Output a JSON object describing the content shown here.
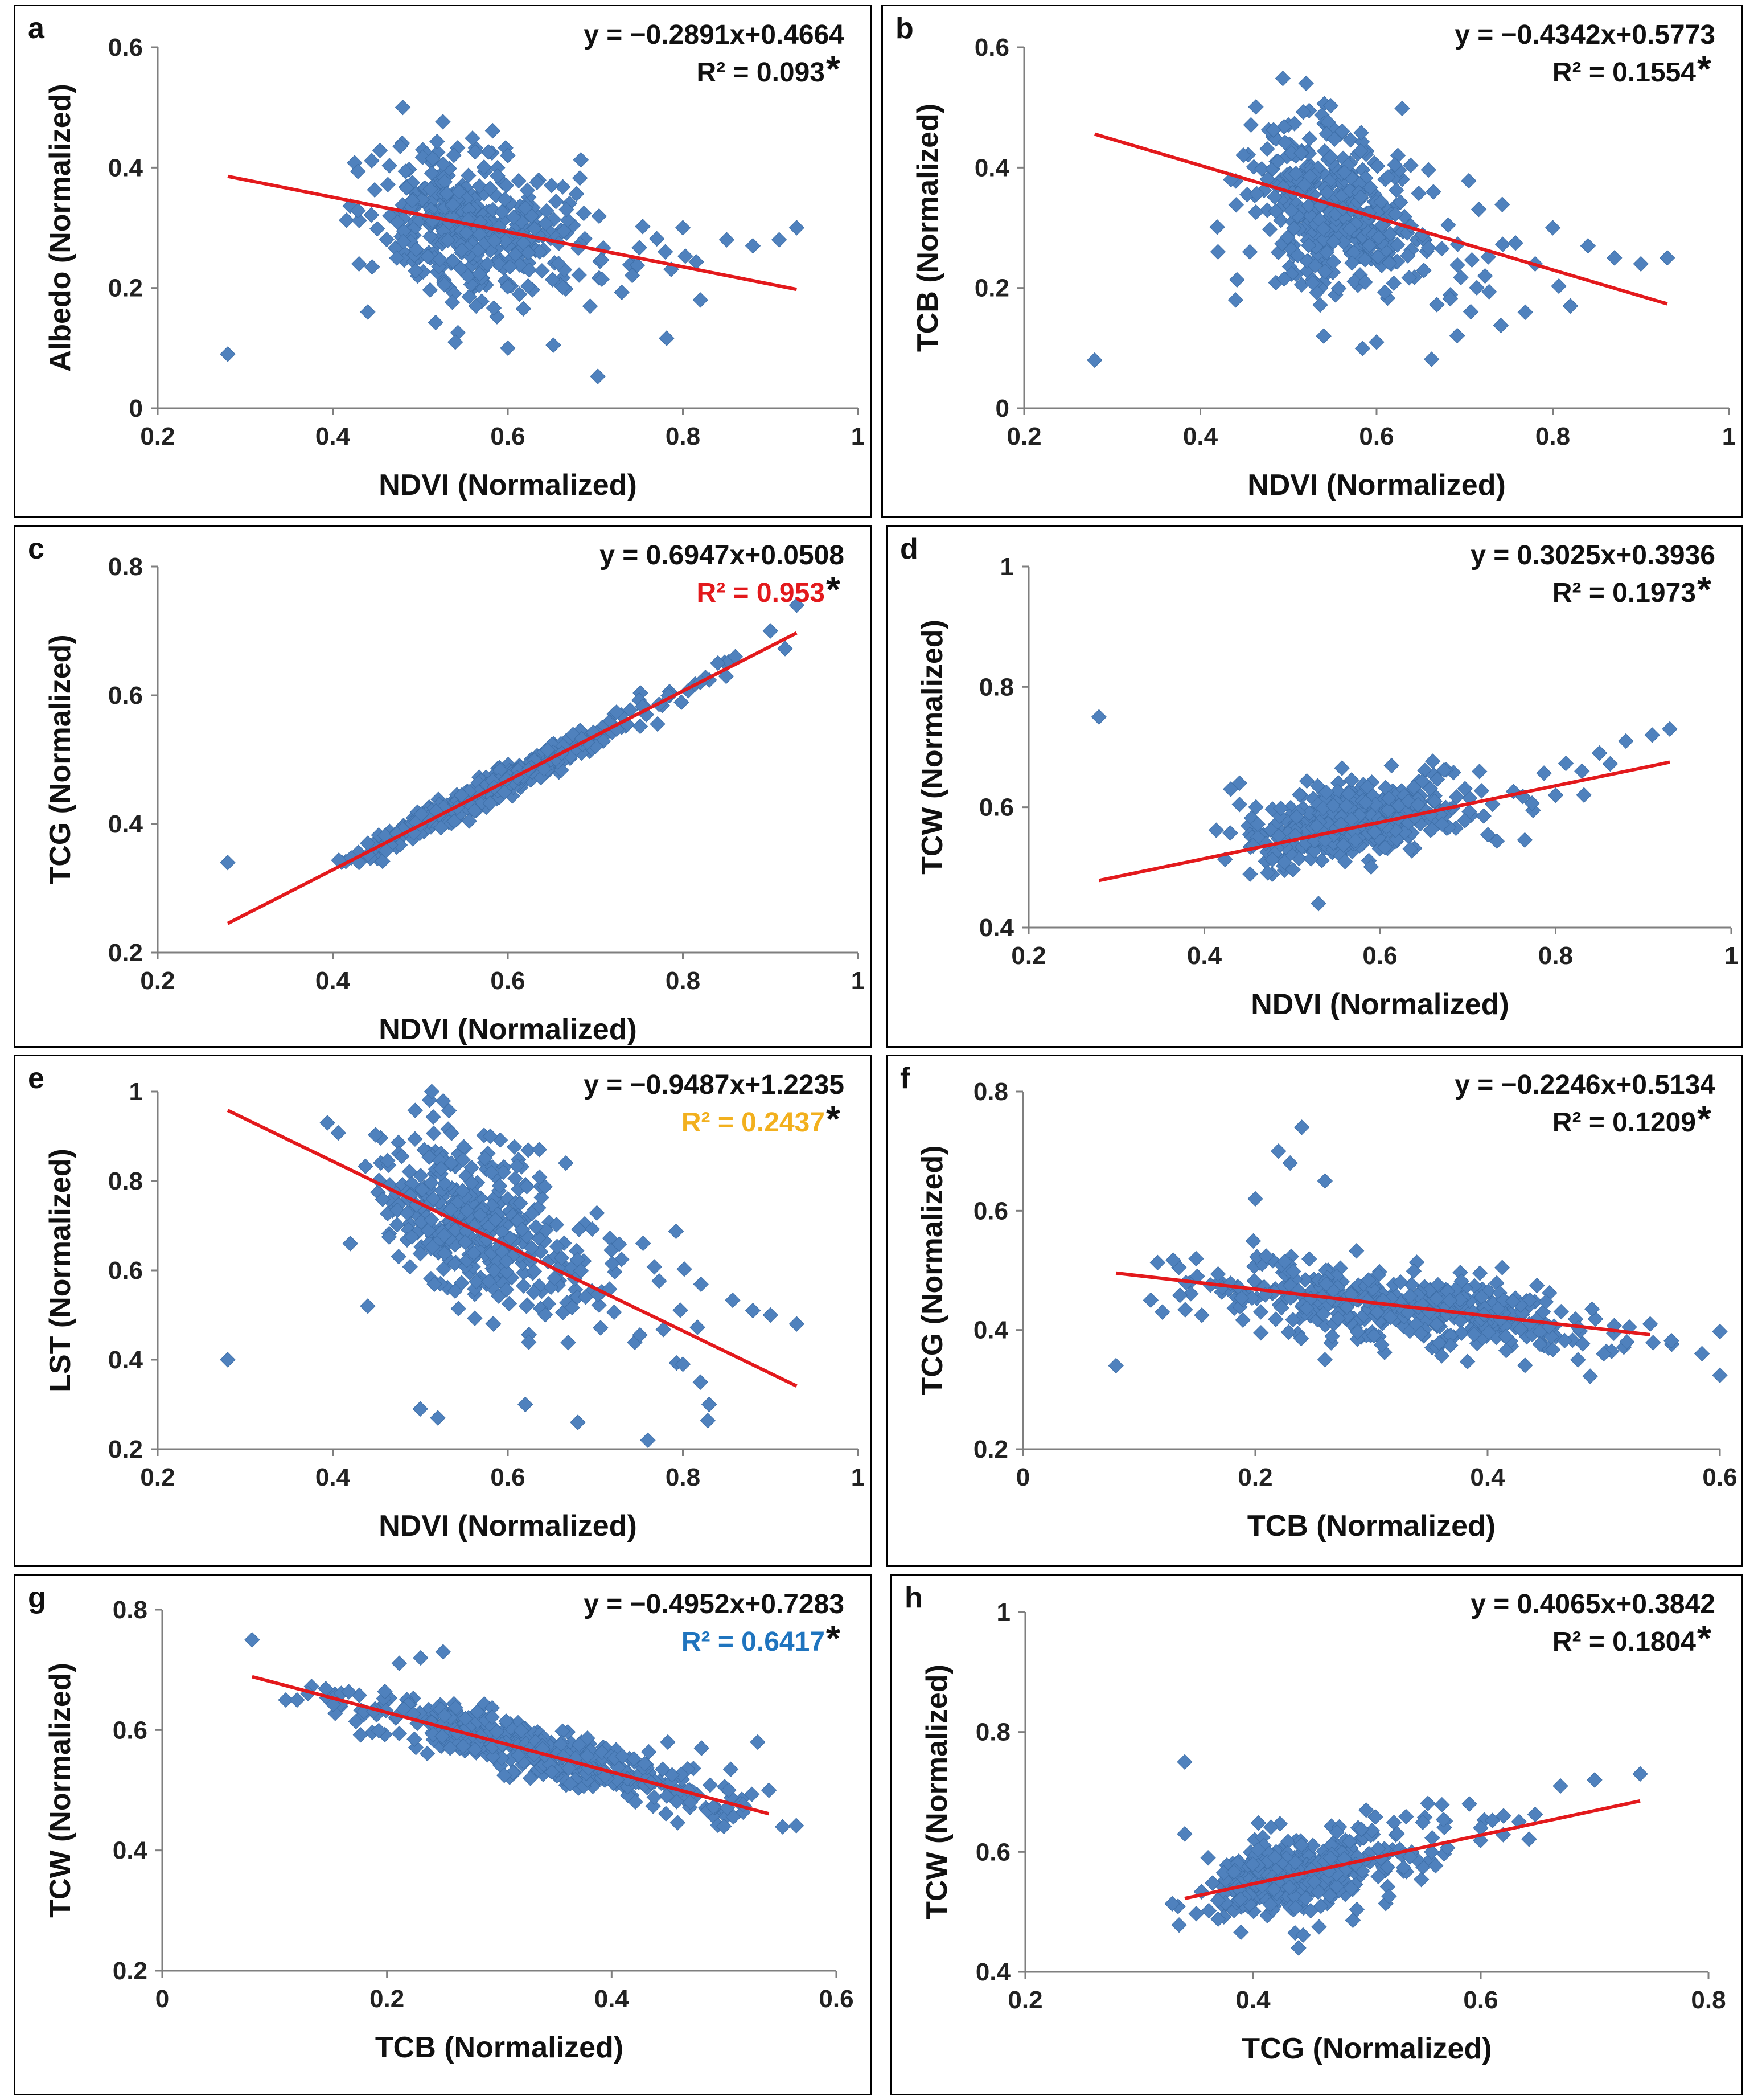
{
  "colors": {
    "points": "#4F81BD",
    "trendline": "#E3191C",
    "axis": "#7F7F7F",
    "text": "#111111"
  },
  "chart_data": [
    {
      "type": "scatter",
      "panel": "a",
      "xlabel": "NDVI (Normalized)",
      "ylabel": "Albedo (Normalized)",
      "xlim": [
        0.2,
        1
      ],
      "ylim": [
        0,
        0.6
      ],
      "xticks": [
        "0.2",
        "0.4",
        "0.6",
        "0.8",
        "1"
      ],
      "yticks": [
        "0",
        "0.2",
        "0.4",
        "0.6"
      ],
      "equation": "y = −0.2891x+0.4664",
      "r2": "R² = 0.093",
      "significance": "*",
      "r2_color": "#111111",
      "slope": -0.2891,
      "intercept": 0.4664,
      "fit_x": [
        0.28,
        0.93
      ],
      "cluster": {
        "x_center": 0.54,
        "x_spread": 0.045,
        "y_center": 0.31,
        "y_spread": 0.06,
        "count": 420,
        "x_skew": 0.09,
        "slope": -0.2891
      },
      "points": [
        [
          0.28,
          0.09
        ],
        [
          0.43,
          0.24
        ],
        [
          0.44,
          0.16
        ],
        [
          0.93,
          0.3
        ],
        [
          0.91,
          0.28
        ],
        [
          0.88,
          0.27
        ],
        [
          0.85,
          0.28
        ],
        [
          0.82,
          0.18
        ],
        [
          0.8,
          0.3
        ],
        [
          0.78,
          0.26
        ],
        [
          0.6,
          0.42
        ],
        [
          0.54,
          0.11
        ],
        [
          0.6,
          0.1
        ],
        [
          0.48,
          0.5
        ]
      ]
    },
    {
      "type": "scatter",
      "panel": "b",
      "xlabel": "NDVI (Normalized)",
      "ylabel": "TCB (Normalized)",
      "xlim": [
        0.2,
        1
      ],
      "ylim": [
        0,
        0.6
      ],
      "xticks": [
        "0.2",
        "0.4",
        "0.6",
        "0.8",
        "1"
      ],
      "yticks": [
        "0",
        "0.2",
        "0.4",
        "0.6"
      ],
      "equation": "y = −0.4342x+0.5773",
      "r2": "R² = 0.1554",
      "significance": "*",
      "r2_color": "#111111",
      "slope": -0.4342,
      "intercept": 0.5773,
      "fit_x": [
        0.28,
        0.93
      ],
      "cluster": {
        "x_center": 0.54,
        "x_spread": 0.045,
        "y_center": 0.34,
        "y_spread": 0.07,
        "count": 420,
        "x_skew": 0.09,
        "slope": -0.4342
      },
      "points": [
        [
          0.28,
          0.08
        ],
        [
          0.42,
          0.26
        ],
        [
          0.44,
          0.18
        ],
        [
          0.93,
          0.25
        ],
        [
          0.9,
          0.24
        ],
        [
          0.87,
          0.25
        ],
        [
          0.84,
          0.27
        ],
        [
          0.82,
          0.17
        ],
        [
          0.8,
          0.3
        ],
        [
          0.78,
          0.24
        ],
        [
          0.52,
          0.54
        ],
        [
          0.54,
          0.12
        ],
        [
          0.6,
          0.11
        ]
      ]
    },
    {
      "type": "scatter",
      "panel": "c",
      "xlabel": "NDVI (Normalized)",
      "ylabel": "TCG (Normalized)",
      "xlim": [
        0.2,
        1
      ],
      "ylim": [
        0.2,
        0.8
      ],
      "xticks": [
        "0.2",
        "0.4",
        "0.6",
        "0.8",
        "1"
      ],
      "yticks": [
        "0.2",
        "0.4",
        "0.6",
        "0.8"
      ],
      "equation": "y = 0.6947x+0.0508",
      "r2": "R² = 0.953",
      "significance": "*",
      "r2_color": "#E3191C",
      "slope": 0.6947,
      "intercept": 0.0508,
      "fit_x": [
        0.28,
        0.93
      ],
      "cluster": {
        "x_center": 0.56,
        "x_spread": 0.06,
        "y_center": 0.0,
        "y_spread": 0.012,
        "count": 420,
        "x_skew": 0.1,
        "slope": 0.6947,
        "follow_line": true
      },
      "points": [
        [
          0.28,
          0.34
        ],
        [
          0.43,
          0.34
        ],
        [
          0.44,
          0.37
        ],
        [
          0.93,
          0.74
        ],
        [
          0.9,
          0.7
        ],
        [
          0.86,
          0.66
        ],
        [
          0.84,
          0.65
        ],
        [
          0.82,
          0.62
        ]
      ]
    },
    {
      "type": "scatter",
      "panel": "d",
      "xlabel": "NDVI (Normalized)",
      "ylabel": "TCW (Normalized)",
      "xlim": [
        0.2,
        1
      ],
      "ylim": [
        0.4,
        1
      ],
      "xticks": [
        "0.2",
        "0.4",
        "0.6",
        "0.8",
        "1"
      ],
      "yticks": [
        "0.4",
        "0.6",
        "0.8",
        "1"
      ],
      "equation": "y = 0.3025x+0.3936",
      "r2": "R² = 0.1973",
      "significance": "*",
      "r2_color": "#111111",
      "slope": 0.3025,
      "intercept": 0.3936,
      "fit_x": [
        0.28,
        0.93
      ],
      "cluster": {
        "x_center": 0.55,
        "x_spread": 0.05,
        "y_center": 0.57,
        "y_spread": 0.03,
        "count": 420,
        "x_skew": 0.09,
        "slope": 0.3025
      },
      "points": [
        [
          0.28,
          0.75
        ],
        [
          0.43,
          0.63
        ],
        [
          0.44,
          0.64
        ],
        [
          0.93,
          0.73
        ],
        [
          0.91,
          0.72
        ],
        [
          0.88,
          0.71
        ],
        [
          0.85,
          0.69
        ],
        [
          0.83,
          0.66
        ],
        [
          0.8,
          0.62
        ],
        [
          0.53,
          0.44
        ]
      ]
    },
    {
      "type": "scatter",
      "panel": "e",
      "xlabel": "NDVI (Normalized)",
      "ylabel": "LST (Normalized)",
      "xlim": [
        0.2,
        1
      ],
      "ylim": [
        0.2,
        1
      ],
      "xticks": [
        "0.2",
        "0.4",
        "0.6",
        "0.8",
        "1"
      ],
      "yticks": [
        "0.2",
        "0.4",
        "0.6",
        "0.8",
        "1"
      ],
      "equation": "y = −0.9487x+1.2235",
      "r2": "R² = 0.2437",
      "significance": "*",
      "r2_color": "#F2B01E",
      "slope": -0.9487,
      "intercept": 1.2235,
      "fit_x": [
        0.28,
        0.93
      ],
      "cluster": {
        "x_center": 0.55,
        "x_spread": 0.05,
        "y_center": 0.72,
        "y_spread": 0.09,
        "count": 420,
        "x_skew": 0.1,
        "slope": -0.9487
      },
      "points": [
        [
          0.28,
          0.4
        ],
        [
          0.42,
          0.66
        ],
        [
          0.44,
          0.52
        ],
        [
          0.93,
          0.48
        ],
        [
          0.9,
          0.5
        ],
        [
          0.88,
          0.51
        ],
        [
          0.83,
          0.3
        ],
        [
          0.82,
          0.35
        ],
        [
          0.8,
          0.39
        ],
        [
          0.76,
          0.22
        ],
        [
          0.68,
          0.26
        ],
        [
          0.62,
          0.3
        ],
        [
          0.52,
          0.27
        ],
        [
          0.5,
          0.29
        ],
        [
          0.58,
          0.9
        ]
      ]
    },
    {
      "type": "scatter",
      "panel": "f",
      "xlabel": "TCB (Normalized)",
      "ylabel": "TCG (Normalized)",
      "xlim": [
        0,
        0.6
      ],
      "ylim": [
        0.2,
        0.8
      ],
      "xticks": [
        "0",
        "0.2",
        "0.4",
        "0.6"
      ],
      "yticks": [
        "0.2",
        "0.4",
        "0.6",
        "0.8"
      ],
      "equation": "y = −0.2246x+0.5134",
      "r2": "R² = 0.1209",
      "significance": "*",
      "r2_color": "#111111",
      "slope": -0.2246,
      "intercept": 0.5134,
      "fit_x": [
        0.08,
        0.54
      ],
      "cluster": {
        "x_center": 0.33,
        "x_spread": 0.085,
        "y_center": 0.44,
        "y_spread": 0.03,
        "count": 460,
        "x_skew": 0.0,
        "slope": -0.2246
      },
      "points": [
        [
          0.08,
          0.34
        ],
        [
          0.11,
          0.45
        ],
        [
          0.12,
          0.43
        ],
        [
          0.15,
          0.49
        ],
        [
          0.24,
          0.74
        ],
        [
          0.22,
          0.7
        ],
        [
          0.23,
          0.68
        ],
        [
          0.26,
          0.65
        ],
        [
          0.2,
          0.62
        ],
        [
          0.54,
          0.41
        ],
        [
          0.52,
          0.38
        ],
        [
          0.5,
          0.36
        ],
        [
          0.26,
          0.35
        ]
      ]
    },
    {
      "type": "scatter",
      "panel": "g",
      "xlabel": "TCB (Normalized)",
      "ylabel": "TCW (Normalized)",
      "xlim": [
        0,
        0.6
      ],
      "ylim": [
        0.2,
        0.8
      ],
      "xticks": [
        "0",
        "0.2",
        "0.4",
        "0.6"
      ],
      "yticks": [
        "0.2",
        "0.4",
        "0.6",
        "0.8"
      ],
      "equation": "y = −0.4952x+0.7283",
      "r2": "R² = 0.6417",
      "significance": "*",
      "r2_color": "#1F74BE",
      "slope": -0.4952,
      "intercept": 0.7283,
      "fit_x": [
        0.08,
        0.54
      ],
      "cluster": {
        "x_center": 0.33,
        "x_spread": 0.085,
        "y_center": 0.0,
        "y_spread": 0.022,
        "count": 460,
        "x_skew": 0.0,
        "slope": -0.4952,
        "follow_line": true
      },
      "points": [
        [
          0.08,
          0.75
        ],
        [
          0.11,
          0.65
        ],
        [
          0.12,
          0.65
        ],
        [
          0.25,
          0.73
        ],
        [
          0.23,
          0.72
        ],
        [
          0.48,
          0.57
        ],
        [
          0.5,
          0.44
        ],
        [
          0.47,
          0.48
        ],
        [
          0.54,
          0.5
        ],
        [
          0.53,
          0.58
        ],
        [
          0.45,
          0.58
        ]
      ]
    },
    {
      "type": "scatter",
      "panel": "h",
      "xlabel": "TCG (Normalized)",
      "ylabel": "TCW (Normalized)",
      "xlim": [
        0.2,
        0.8
      ],
      "ylim": [
        0.4,
        1
      ],
      "xticks": [
        "0.2",
        "0.4",
        "0.6",
        "0.8"
      ],
      "yticks": [
        "0.4",
        "0.6",
        "0.8",
        "1"
      ],
      "equation": "y = 0.4065x+0.3842",
      "r2": "R² = 0.1804",
      "significance": "*",
      "r2_color": "#111111",
      "slope": 0.4065,
      "intercept": 0.3842,
      "fit_x": [
        0.34,
        0.74
      ],
      "cluster": {
        "x_center": 0.43,
        "x_spread": 0.035,
        "y_center": 0.56,
        "y_spread": 0.032,
        "count": 420,
        "x_skew": 0.07,
        "slope": 0.4065
      },
      "points": [
        [
          0.34,
          0.75
        ],
        [
          0.34,
          0.63
        ],
        [
          0.74,
          0.73
        ],
        [
          0.7,
          0.72
        ],
        [
          0.67,
          0.71
        ],
        [
          0.62,
          0.66
        ],
        [
          0.59,
          0.68
        ],
        [
          0.6,
          0.64
        ],
        [
          0.44,
          0.44
        ]
      ]
    }
  ]
}
